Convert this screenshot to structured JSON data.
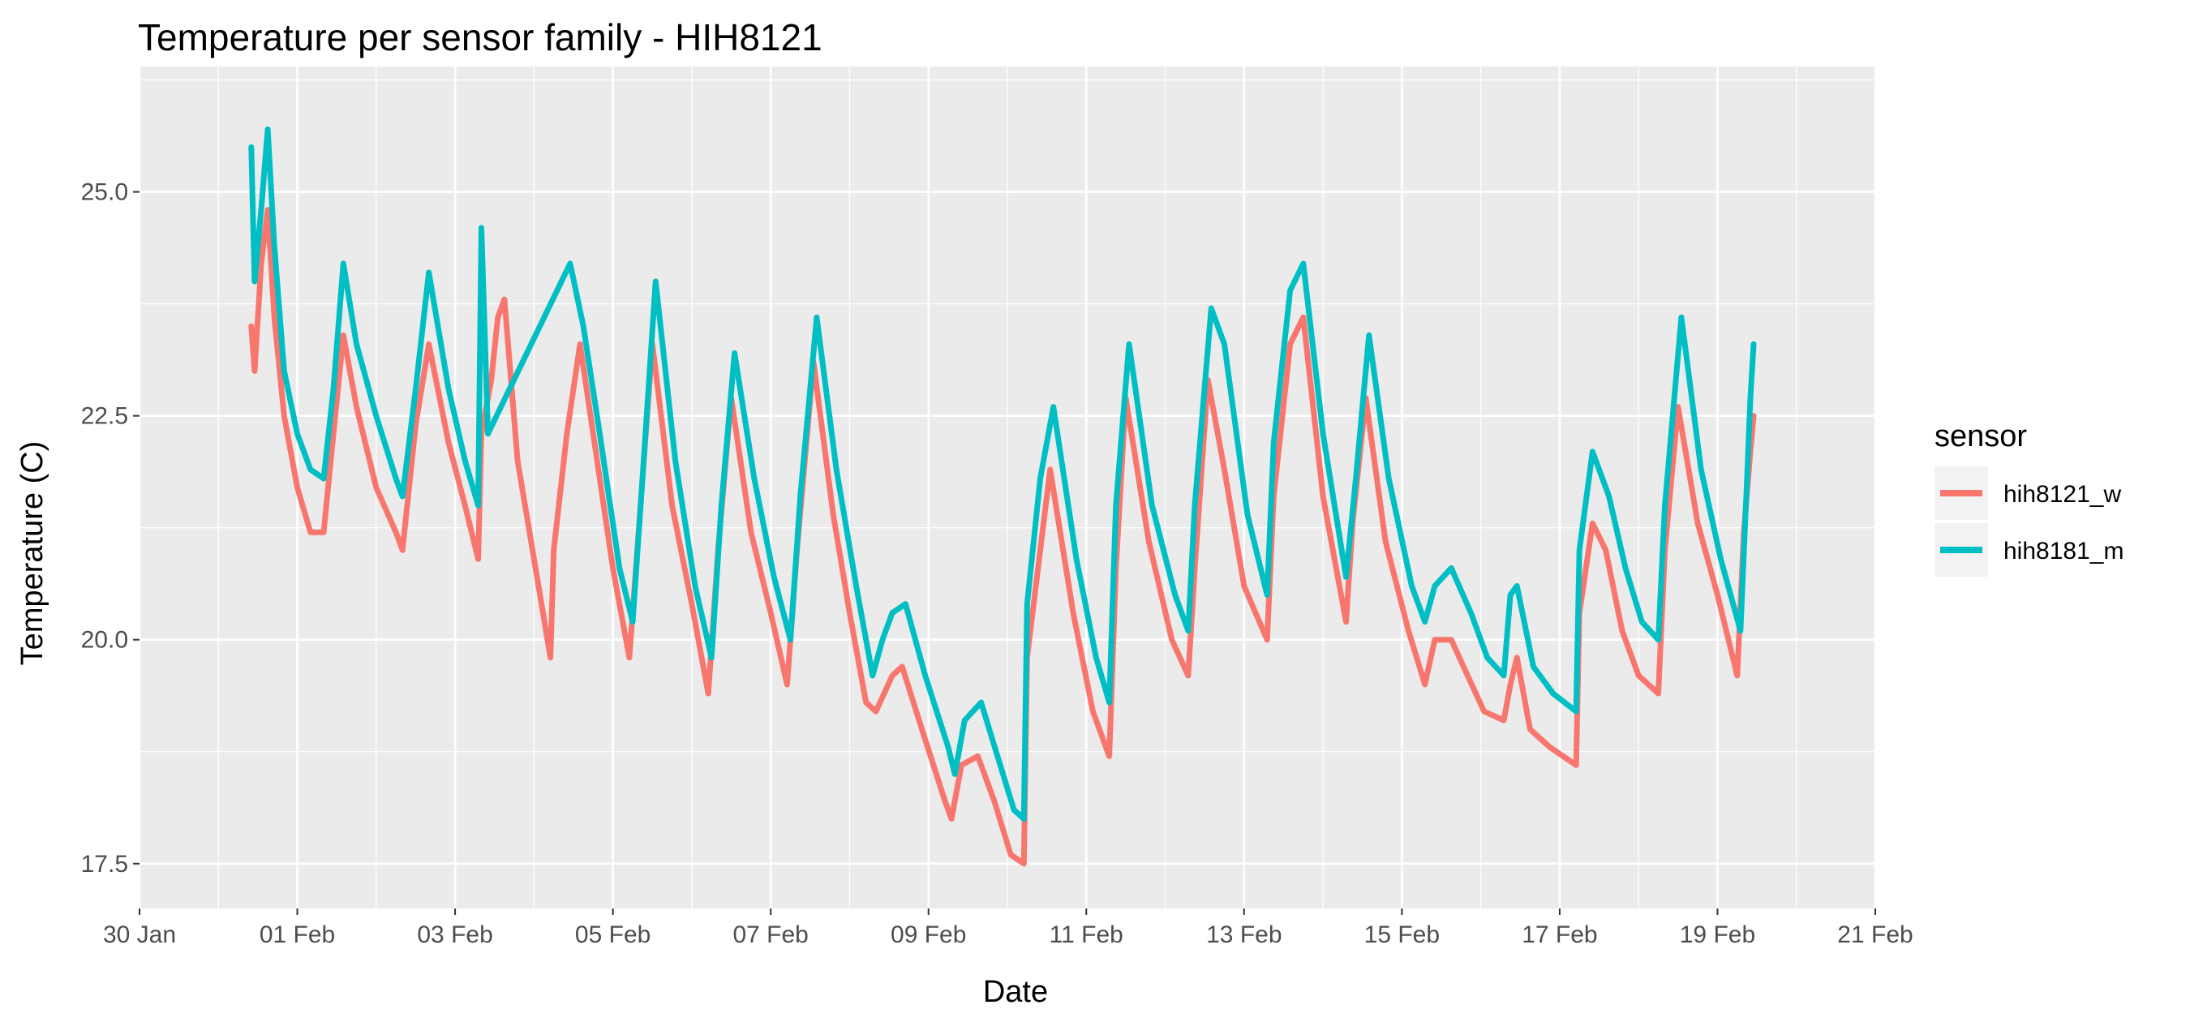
{
  "chart_data": {
    "type": "line",
    "title": "Temperature per sensor family - HIH8121",
    "xlabel": "Date",
    "ylabel": "Temperature (C)",
    "x_axis": {
      "type": "date",
      "range": [
        "2020-01-30",
        "2020-02-21"
      ],
      "ticks": [
        {
          "date": "2020-01-30",
          "label": "30 Jan"
        },
        {
          "date": "2020-02-01",
          "label": "01 Feb"
        },
        {
          "date": "2020-02-03",
          "label": "03 Feb"
        },
        {
          "date": "2020-02-05",
          "label": "05 Feb"
        },
        {
          "date": "2020-02-07",
          "label": "07 Feb"
        },
        {
          "date": "2020-02-09",
          "label": "09 Feb"
        },
        {
          "date": "2020-02-11",
          "label": "11 Feb"
        },
        {
          "date": "2020-02-13",
          "label": "13 Feb"
        },
        {
          "date": "2020-02-15",
          "label": "15 Feb"
        },
        {
          "date": "2020-02-17",
          "label": "17 Feb"
        },
        {
          "date": "2020-02-19",
          "label": "19 Feb"
        },
        {
          "date": "2020-02-21",
          "label": "21 Feb"
        }
      ]
    },
    "y_axis": {
      "range": [
        17.0,
        26.4
      ],
      "ticks": [
        {
          "value": 17.5,
          "label": "17.5"
        },
        {
          "value": 20.0,
          "label": "20.0"
        },
        {
          "value": 22.5,
          "label": "22.5"
        },
        {
          "value": 25.0,
          "label": "25.0"
        }
      ]
    },
    "grid": true,
    "legend": {
      "title": "sensor",
      "position": "right"
    },
    "series": [
      {
        "name": "hih8121_w",
        "color": "#F8766D",
        "points": [
          [
            "2020-01-31T10:00",
            23.5
          ],
          [
            "2020-01-31T11:00",
            23.0
          ],
          [
            "2020-01-31T13:00",
            24.2
          ],
          [
            "2020-01-31T15:00",
            24.8
          ],
          [
            "2020-01-31T17:00",
            23.6
          ],
          [
            "2020-01-31T20:00",
            22.5
          ],
          [
            "2020-02-01T00:00",
            21.7
          ],
          [
            "2020-02-01T04:00",
            21.2
          ],
          [
            "2020-02-01T08:00",
            21.2
          ],
          [
            "2020-02-01T11:00",
            22.3
          ],
          [
            "2020-02-01T14:00",
            23.4
          ],
          [
            "2020-02-01T18:00",
            22.6
          ],
          [
            "2020-02-02T00:00",
            21.7
          ],
          [
            "2020-02-02T06:00",
            21.2
          ],
          [
            "2020-02-02T08:00",
            21.0
          ],
          [
            "2020-02-02T12:00",
            22.4
          ],
          [
            "2020-02-02T16:00",
            23.3
          ],
          [
            "2020-02-02T22:00",
            22.2
          ],
          [
            "2020-02-03T03:00",
            21.5
          ],
          [
            "2020-02-03T07:00",
            20.9
          ],
          [
            "2020-02-03T08:00",
            22.3
          ],
          [
            "2020-02-03T11:00",
            22.9
          ],
          [
            "2020-02-03T13:00",
            23.6
          ],
          [
            "2020-02-03T15:00",
            23.8
          ],
          [
            "2020-02-03T19:00",
            22.0
          ],
          [
            "2020-02-04T00:00",
            20.9
          ],
          [
            "2020-02-04T05:00",
            19.8
          ],
          [
            "2020-02-04T06:00",
            21.0
          ],
          [
            "2020-02-04T10:00",
            22.3
          ],
          [
            "2020-02-04T14:00",
            23.3
          ],
          [
            "2020-02-04T18:00",
            22.3
          ],
          [
            "2020-02-05T00:00",
            20.8
          ],
          [
            "2020-02-05T05:00",
            19.8
          ],
          [
            "2020-02-05T08:00",
            21.3
          ],
          [
            "2020-02-05T12:00",
            23.3
          ],
          [
            "2020-02-05T18:00",
            21.5
          ],
          [
            "2020-02-06T00:00",
            20.4
          ],
          [
            "2020-02-06T05:00",
            19.4
          ],
          [
            "2020-02-06T08:00",
            21.0
          ],
          [
            "2020-02-06T12:00",
            22.7
          ],
          [
            "2020-02-06T18:00",
            21.2
          ],
          [
            "2020-02-07T00:00",
            20.3
          ],
          [
            "2020-02-07T05:00",
            19.5
          ],
          [
            "2020-02-07T08:00",
            21.0
          ],
          [
            "2020-02-07T13:00",
            23.1
          ],
          [
            "2020-02-07T19:00",
            21.4
          ],
          [
            "2020-02-08T00:00",
            20.3
          ],
          [
            "2020-02-08T05:00",
            19.3
          ],
          [
            "2020-02-08T08:00",
            19.2
          ],
          [
            "2020-02-08T13:00",
            19.6
          ],
          [
            "2020-02-08T16:00",
            19.7
          ],
          [
            "2020-02-08T22:00",
            19.0
          ],
          [
            "2020-02-09T05:00",
            18.2
          ],
          [
            "2020-02-09T07:00",
            18.0
          ],
          [
            "2020-02-09T10:00",
            18.6
          ],
          [
            "2020-02-09T15:00",
            18.7
          ],
          [
            "2020-02-09T20:00",
            18.2
          ],
          [
            "2020-02-10T01:00",
            17.6
          ],
          [
            "2020-02-10T05:00",
            17.5
          ],
          [
            "2020-02-10T06:00",
            19.8
          ],
          [
            "2020-02-10T10:00",
            21.0
          ],
          [
            "2020-02-10T13:00",
            21.9
          ],
          [
            "2020-02-10T20:00",
            20.3
          ],
          [
            "2020-02-11T02:00",
            19.2
          ],
          [
            "2020-02-11T07:00",
            18.7
          ],
          [
            "2020-02-11T09:00",
            20.8
          ],
          [
            "2020-02-11T12:00",
            22.7
          ],
          [
            "2020-02-11T19:00",
            21.1
          ],
          [
            "2020-02-12T02:00",
            20.0
          ],
          [
            "2020-02-12T07:00",
            19.6
          ],
          [
            "2020-02-12T09:00",
            20.8
          ],
          [
            "2020-02-12T13:00",
            22.9
          ],
          [
            "2020-02-12T18:00",
            21.9
          ],
          [
            "2020-02-13T00:00",
            20.6
          ],
          [
            "2020-02-13T07:00",
            20.0
          ],
          [
            "2020-02-13T09:00",
            21.6
          ],
          [
            "2020-02-13T14:00",
            23.3
          ],
          [
            "2020-02-13T18:00",
            23.6
          ],
          [
            "2020-02-14T00:00",
            21.6
          ],
          [
            "2020-02-14T07:00",
            20.2
          ],
          [
            "2020-02-14T09:00",
            21.3
          ],
          [
            "2020-02-14T13:00",
            22.7
          ],
          [
            "2020-02-14T19:00",
            21.1
          ],
          [
            "2020-02-15T02:00",
            20.1
          ],
          [
            "2020-02-15T07:00",
            19.5
          ],
          [
            "2020-02-15T10:00",
            20.0
          ],
          [
            "2020-02-15T15:00",
            20.0
          ],
          [
            "2020-02-15T20:00",
            19.6
          ],
          [
            "2020-02-16T01:00",
            19.2
          ],
          [
            "2020-02-16T07:00",
            19.1
          ],
          [
            "2020-02-16T09:00",
            19.5
          ],
          [
            "2020-02-16T11:00",
            19.8
          ],
          [
            "2020-02-16T15:00",
            19.0
          ],
          [
            "2020-02-16T21:00",
            18.8
          ],
          [
            "2020-02-17T05:00",
            18.6
          ],
          [
            "2020-02-17T06:00",
            20.3
          ],
          [
            "2020-02-17T10:00",
            21.3
          ],
          [
            "2020-02-17T14:00",
            21.0
          ],
          [
            "2020-02-17T19:00",
            20.1
          ],
          [
            "2020-02-18T00:00",
            19.6
          ],
          [
            "2020-02-18T06:00",
            19.4
          ],
          [
            "2020-02-18T08:00",
            21.0
          ],
          [
            "2020-02-18T12:00",
            22.6
          ],
          [
            "2020-02-18T18:00",
            21.3
          ],
          [
            "2020-02-19T00:00",
            20.5
          ],
          [
            "2020-02-19T06:00",
            19.6
          ],
          [
            "2020-02-19T08:00",
            21.2
          ],
          [
            "2020-02-19T10:00",
            22.1
          ],
          [
            "2020-02-19T11:00",
            22.5
          ]
        ]
      },
      {
        "name": "hih8181_m",
        "color": "#00BFC4",
        "points": [
          [
            "2020-01-31T10:00",
            25.5
          ],
          [
            "2020-01-31T11:00",
            24.0
          ],
          [
            "2020-01-31T13:00",
            24.8
          ],
          [
            "2020-01-31T15:00",
            25.7
          ],
          [
            "2020-01-31T17:00",
            24.4
          ],
          [
            "2020-01-31T20:00",
            23.0
          ],
          [
            "2020-02-01T00:00",
            22.3
          ],
          [
            "2020-02-01T04:00",
            21.9
          ],
          [
            "2020-02-01T08:00",
            21.8
          ],
          [
            "2020-02-01T11:00",
            22.8
          ],
          [
            "2020-02-01T14:00",
            24.2
          ],
          [
            "2020-02-01T18:00",
            23.3
          ],
          [
            "2020-02-02T00:00",
            22.5
          ],
          [
            "2020-02-02T06:00",
            21.8
          ],
          [
            "2020-02-02T08:00",
            21.6
          ],
          [
            "2020-02-02T12:00",
            22.8
          ],
          [
            "2020-02-02T16:00",
            24.1
          ],
          [
            "2020-02-02T22:00",
            22.8
          ],
          [
            "2020-02-03T03:00",
            22.0
          ],
          [
            "2020-02-03T07:00",
            21.5
          ],
          [
            "2020-02-03T08:00",
            24.6
          ],
          [
            "2020-02-03T10:00",
            22.3
          ],
          [
            "2020-02-04T11:00",
            24.2
          ],
          [
            "2020-02-04T15:00",
            23.5
          ],
          [
            "2020-02-04T20:00",
            22.3
          ],
          [
            "2020-02-05T02:00",
            20.8
          ],
          [
            "2020-02-05T06:00",
            20.2
          ],
          [
            "2020-02-05T09:00",
            21.8
          ],
          [
            "2020-02-05T13:00",
            24.0
          ],
          [
            "2020-02-05T19:00",
            22.0
          ],
          [
            "2020-02-06T01:00",
            20.6
          ],
          [
            "2020-02-06T06:00",
            19.8
          ],
          [
            "2020-02-06T09:00",
            21.5
          ],
          [
            "2020-02-06T13:00",
            23.2
          ],
          [
            "2020-02-06T19:00",
            21.8
          ],
          [
            "2020-02-07T01:00",
            20.7
          ],
          [
            "2020-02-07T06:00",
            20.0
          ],
          [
            "2020-02-07T09:00",
            21.6
          ],
          [
            "2020-02-07T14:00",
            23.6
          ],
          [
            "2020-02-07T20:00",
            21.9
          ],
          [
            "2020-02-08T02:00",
            20.6
          ],
          [
            "2020-02-08T07:00",
            19.6
          ],
          [
            "2020-02-08T10:00",
            20.0
          ],
          [
            "2020-02-08T13:00",
            20.3
          ],
          [
            "2020-02-08T17:00",
            20.4
          ],
          [
            "2020-02-08T23:00",
            19.6
          ],
          [
            "2020-02-09T06:00",
            18.8
          ],
          [
            "2020-02-09T08:00",
            18.5
          ],
          [
            "2020-02-09T11:00",
            19.1
          ],
          [
            "2020-02-09T16:00",
            19.3
          ],
          [
            "2020-02-09T21:00",
            18.7
          ],
          [
            "2020-02-10T02:00",
            18.1
          ],
          [
            "2020-02-10T05:00",
            18.0
          ],
          [
            "2020-02-10T06:00",
            20.4
          ],
          [
            "2020-02-10T10:00",
            21.8
          ],
          [
            "2020-02-10T14:00",
            22.6
          ],
          [
            "2020-02-10T21:00",
            20.9
          ],
          [
            "2020-02-11T03:00",
            19.8
          ],
          [
            "2020-02-11T07:00",
            19.3
          ],
          [
            "2020-02-11T09:00",
            21.5
          ],
          [
            "2020-02-11T13:00",
            23.3
          ],
          [
            "2020-02-11T20:00",
            21.5
          ],
          [
            "2020-02-12T03:00",
            20.5
          ],
          [
            "2020-02-12T07:00",
            20.1
          ],
          [
            "2020-02-12T09:00",
            21.5
          ],
          [
            "2020-02-12T14:00",
            23.7
          ],
          [
            "2020-02-12T18:00",
            23.3
          ],
          [
            "2020-02-13T01:00",
            21.4
          ],
          [
            "2020-02-13T07:00",
            20.5
          ],
          [
            "2020-02-13T09:00",
            22.2
          ],
          [
            "2020-02-13T14:00",
            23.9
          ],
          [
            "2020-02-13T18:00",
            24.2
          ],
          [
            "2020-02-14T00:00",
            22.3
          ],
          [
            "2020-02-14T07:00",
            20.7
          ],
          [
            "2020-02-14T10:00",
            21.8
          ],
          [
            "2020-02-14T14:00",
            23.4
          ],
          [
            "2020-02-14T20:00",
            21.8
          ],
          [
            "2020-02-15T03:00",
            20.6
          ],
          [
            "2020-02-15T07:00",
            20.2
          ],
          [
            "2020-02-15T10:00",
            20.6
          ],
          [
            "2020-02-15T15:00",
            20.8
          ],
          [
            "2020-02-15T21:00",
            20.3
          ],
          [
            "2020-02-16T02:00",
            19.8
          ],
          [
            "2020-02-16T07:00",
            19.6
          ],
          [
            "2020-02-16T09:00",
            20.5
          ],
          [
            "2020-02-16T11:00",
            20.6
          ],
          [
            "2020-02-16T16:00",
            19.7
          ],
          [
            "2020-02-16T22:00",
            19.4
          ],
          [
            "2020-02-17T05:00",
            19.2
          ],
          [
            "2020-02-17T06:00",
            21.0
          ],
          [
            "2020-02-17T10:00",
            22.1
          ],
          [
            "2020-02-17T15:00",
            21.6
          ],
          [
            "2020-02-17T20:00",
            20.8
          ],
          [
            "2020-02-18T01:00",
            20.2
          ],
          [
            "2020-02-18T06:00",
            20.0
          ],
          [
            "2020-02-18T08:00",
            21.5
          ],
          [
            "2020-02-18T13:00",
            23.6
          ],
          [
            "2020-02-18T19:00",
            21.9
          ],
          [
            "2020-02-19T01:00",
            20.9
          ],
          [
            "2020-02-19T07:00",
            20.1
          ],
          [
            "2020-02-19T09:00",
            21.8
          ],
          [
            "2020-02-19T10:00",
            22.7
          ],
          [
            "2020-02-19T11:00",
            23.3
          ]
        ]
      }
    ]
  }
}
